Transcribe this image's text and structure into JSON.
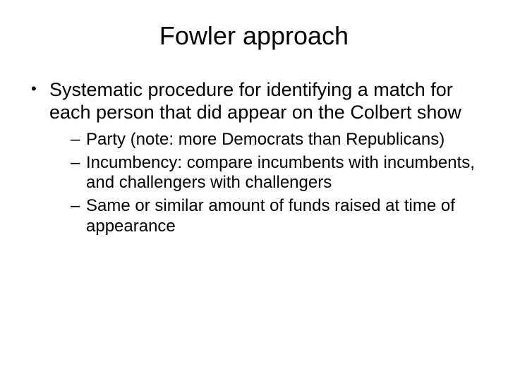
{
  "slide": {
    "title": "Fowler approach",
    "title_fontsize": 36,
    "body_fontsize": 27,
    "sub_fontsize": 24,
    "text_color": "#000000",
    "background_color": "#ffffff",
    "bullets": [
      {
        "text": "Systematic procedure for identifying a match for each person that did appear on the Colbert show",
        "children": [
          {
            "text": "Party (note: more Democrats than Republicans)"
          },
          {
            "text": "Incumbency: compare incumbents with incumbents, and challengers with challengers"
          },
          {
            "text": "Same or similar amount of funds raised at time of appearance"
          }
        ]
      }
    ]
  }
}
